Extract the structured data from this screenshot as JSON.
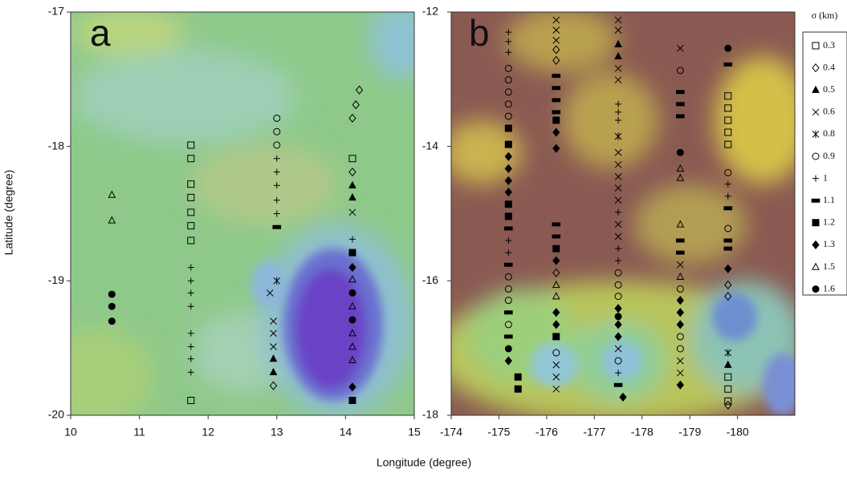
{
  "chart_data": [
    {
      "type": "scatter",
      "panel_label": "a",
      "xlabel": "Longitude (degree)",
      "ylabel": "Latitude (degree)",
      "legend_title": "σ (km)",
      "marker_color": "#000000",
      "xlim": [
        10,
        15
      ],
      "xticks": [
        10,
        11,
        12,
        13,
        14,
        15
      ],
      "ylim": [
        -20,
        -17
      ],
      "yticks": [
        -20,
        -19,
        -18,
        -17
      ],
      "series": [
        {
          "name": "0.3",
          "marker": "square-open",
          "x": [
            11.75,
            11.75,
            11.75,
            11.75,
            11.75,
            11.75,
            11.75,
            11.75,
            14.1
          ],
          "y": [
            -17.99,
            -18.09,
            -18.28,
            -18.38,
            -18.49,
            -18.59,
            -18.7,
            -19.89,
            -18.09
          ]
        },
        {
          "name": "0.4",
          "marker": "diamond-open",
          "x": [
            12.95,
            14.2,
            14.15,
            14.1,
            14.1
          ],
          "y": [
            -19.78,
            -17.58,
            -17.69,
            -17.79,
            -18.19
          ]
        },
        {
          "name": "0.5",
          "marker": "triangle-filled",
          "x": [
            12.95,
            12.95,
            14.1,
            14.1
          ],
          "y": [
            -19.58,
            -19.68,
            -18.29,
            -18.38
          ]
        },
        {
          "name": "0.6",
          "marker": "x",
          "x": [
            12.9,
            12.95,
            12.95,
            12.95,
            14.1
          ],
          "y": [
            -19.09,
            -19.3,
            -19.39,
            -19.49,
            -18.49
          ]
        },
        {
          "name": "0.8",
          "marker": "asterisk",
          "x": [
            13.0
          ],
          "y": [
            -19.0
          ]
        },
        {
          "name": "0.9",
          "marker": "circle-open",
          "x": [
            13.0,
            13.0,
            13.0
          ],
          "y": [
            -17.79,
            -17.89,
            -17.99
          ]
        },
        {
          "name": "1",
          "marker": "plus",
          "x": [
            11.75,
            11.75,
            11.75,
            11.75,
            11.75,
            11.75,
            11.75,
            11.75,
            13.0,
            13.0,
            13.0,
            13.0,
            13.0,
            14.1
          ],
          "y": [
            -18.9,
            -19.0,
            -19.09,
            -19.19,
            -19.39,
            -19.49,
            -19.58,
            -19.68,
            -18.09,
            -18.19,
            -18.29,
            -18.4,
            -18.5,
            -18.69
          ]
        },
        {
          "name": "1.1",
          "marker": "dash",
          "x": [
            13.0
          ],
          "y": [
            -18.6
          ]
        },
        {
          "name": "1.2",
          "marker": "square-filled",
          "x": [
            14.1,
            14.1
          ],
          "y": [
            -18.79,
            -19.89
          ]
        },
        {
          "name": "1.3",
          "marker": "diamond-filled",
          "x": [
            14.1,
            14.1
          ],
          "y": [
            -18.9,
            -19.79
          ]
        },
        {
          "name": "1.5",
          "marker": "triangle-open",
          "x": [
            10.6,
            10.6,
            14.1,
            14.1,
            14.1,
            14.1,
            14.1
          ],
          "y": [
            -18.36,
            -18.55,
            -18.99,
            -19.19,
            -19.39,
            -19.49,
            -19.59
          ]
        },
        {
          "name": "1.6",
          "marker": "circle-filled",
          "x": [
            10.6,
            10.6,
            10.6,
            14.1,
            14.1
          ],
          "y": [
            -19.1,
            -19.19,
            -19.3,
            -19.09,
            -19.29
          ]
        }
      ]
    },
    {
      "type": "scatter",
      "panel_label": "b",
      "marker_color": "#000000",
      "xlim": [
        -174,
        -181.2
      ],
      "xticks": [
        -174,
        -175,
        -176,
        -177,
        -178,
        -179,
        -180
      ],
      "ylim": [
        -18,
        -12
      ],
      "yticks": [
        -18,
        -16,
        -14,
        -12
      ],
      "series": [
        {
          "marker": "square-open",
          "x": [
            -179.8,
            -179.8,
            -179.8,
            -179.8,
            -179.8,
            -179.8,
            -179.8,
            -179.8
          ],
          "y": [
            -13.25,
            -13.43,
            -13.61,
            -13.79,
            -13.97,
            -17.43,
            -17.61,
            -17.79
          ]
        },
        {
          "marker": "diamond-open",
          "x": [
            -176.2,
            -176.2,
            -176.2,
            -179.8,
            -179.8,
            -179.8
          ],
          "y": [
            -12.56,
            -12.72,
            -15.88,
            -16.06,
            -16.23,
            -17.85
          ]
        },
        {
          "marker": "triangle-filled",
          "x": [
            -177.5,
            -177.5,
            -179.8
          ],
          "y": [
            -12.48,
            -12.66,
            -17.25
          ]
        },
        {
          "marker": "x",
          "x": [
            -176.2,
            -176.2,
            -176.2,
            -176.2,
            -176.2,
            -176.2,
            -177.5,
            -177.5,
            -177.5,
            -177.5,
            -177.5,
            -177.5,
            -177.5,
            -177.5,
            -177.5,
            -177.5,
            -177.5,
            -177.5,
            -178.8,
            -178.8,
            -178.8,
            -178.8
          ],
          "y": [
            -12.12,
            -12.27,
            -12.42,
            -17.25,
            -17.43,
            -17.61,
            -12.12,
            -12.27,
            -12.84,
            -13.01,
            -14.09,
            -14.27,
            -14.45,
            -14.62,
            -14.8,
            -15.16,
            -15.34,
            -17.01,
            -12.54,
            -15.76,
            -17.19,
            -17.37
          ]
        },
        {
          "marker": "asterisk",
          "x": [
            -177.5,
            -179.8
          ],
          "y": [
            -13.85,
            -17.07
          ]
        },
        {
          "marker": "circle-open",
          "x": [
            -175.2,
            -175.2,
            -175.2,
            -175.2,
            -175.2,
            -175.2,
            -175.2,
            -175.2,
            -175.2,
            -176.2,
            -177.5,
            -177.5,
            -177.5,
            -177.5,
            -178.8,
            -178.8,
            -178.8,
            -178.8,
            -179.8,
            -179.8
          ],
          "y": [
            -12.84,
            -13.01,
            -13.19,
            -13.37,
            -13.55,
            -15.94,
            -16.12,
            -16.29,
            -16.65,
            -17.07,
            -15.88,
            -16.06,
            -16.23,
            -17.19,
            -12.87,
            -16.12,
            -16.83,
            -17.01,
            -14.39,
            -15.22
          ]
        },
        {
          "marker": "plus",
          "x": [
            -175.2,
            -175.2,
            -175.2,
            -175.2,
            -175.2,
            -177.5,
            -177.5,
            -177.5,
            -177.5,
            -177.5,
            -177.5,
            -177.5,
            -179.8,
            -179.8
          ],
          "y": [
            -12.3,
            -12.44,
            -12.6,
            -15.4,
            -15.58,
            -13.37,
            -13.49,
            -13.61,
            -14.98,
            -15.52,
            -15.7,
            -17.37,
            -14.56,
            -14.74
          ]
        },
        {
          "marker": "dash",
          "x": [
            -175.2,
            -175.2,
            -175.2,
            -175.2,
            -176.2,
            -176.2,
            -176.2,
            -176.2,
            -176.2,
            -176.2,
            -177.5,
            -178.8,
            -178.8,
            -178.8,
            -178.8,
            -178.8,
            -179.8,
            -179.8,
            -179.8,
            -179.8
          ],
          "y": [
            -15.22,
            -15.76,
            -16.47,
            -16.83,
            -12.95,
            -13.13,
            -13.31,
            -13.49,
            -15.16,
            -15.34,
            -17.55,
            -13.19,
            -13.37,
            -13.55,
            -15.4,
            -15.58,
            -12.78,
            -14.92,
            -15.4,
            -15.52
          ]
        },
        {
          "marker": "square-filled",
          "x": [
            -175.2,
            -175.2,
            -175.2,
            -175.2,
            -175.4,
            -175.4,
            -176.2,
            -176.2,
            -176.2
          ],
          "y": [
            -13.73,
            -13.97,
            -14.86,
            -15.04,
            -17.43,
            -17.61,
            -13.61,
            -15.52,
            -16.83
          ]
        },
        {
          "marker": "diamond-filled",
          "x": [
            -175.2,
            -175.2,
            -175.2,
            -175.2,
            -175.2,
            -176.2,
            -176.2,
            -176.2,
            -176.2,
            -176.2,
            -177.5,
            -177.5,
            -177.5,
            -177.6,
            -178.8,
            -178.8,
            -178.8,
            -178.8,
            -179.8
          ],
          "y": [
            -14.15,
            -14.33,
            -14.51,
            -14.68,
            -17.19,
            -13.79,
            -14.03,
            -15.7,
            -16.47,
            -16.65,
            -16.41,
            -16.65,
            -16.83,
            -17.73,
            -16.29,
            -16.47,
            -16.65,
            -17.55,
            -15.82
          ]
        },
        {
          "marker": "triangle-open",
          "x": [
            -176.2,
            -176.2,
            -178.8,
            -178.8,
            -178.8,
            -178.8
          ],
          "y": [
            -16.06,
            -16.23,
            -14.33,
            -14.47,
            -15.16,
            -15.94
          ]
        },
        {
          "marker": "circle-filled",
          "x": [
            -175.2,
            -177.5,
            -178.8,
            -179.8
          ],
          "y": [
            -17.01,
            -16.53,
            -14.09,
            -12.54
          ]
        }
      ]
    }
  ]
}
